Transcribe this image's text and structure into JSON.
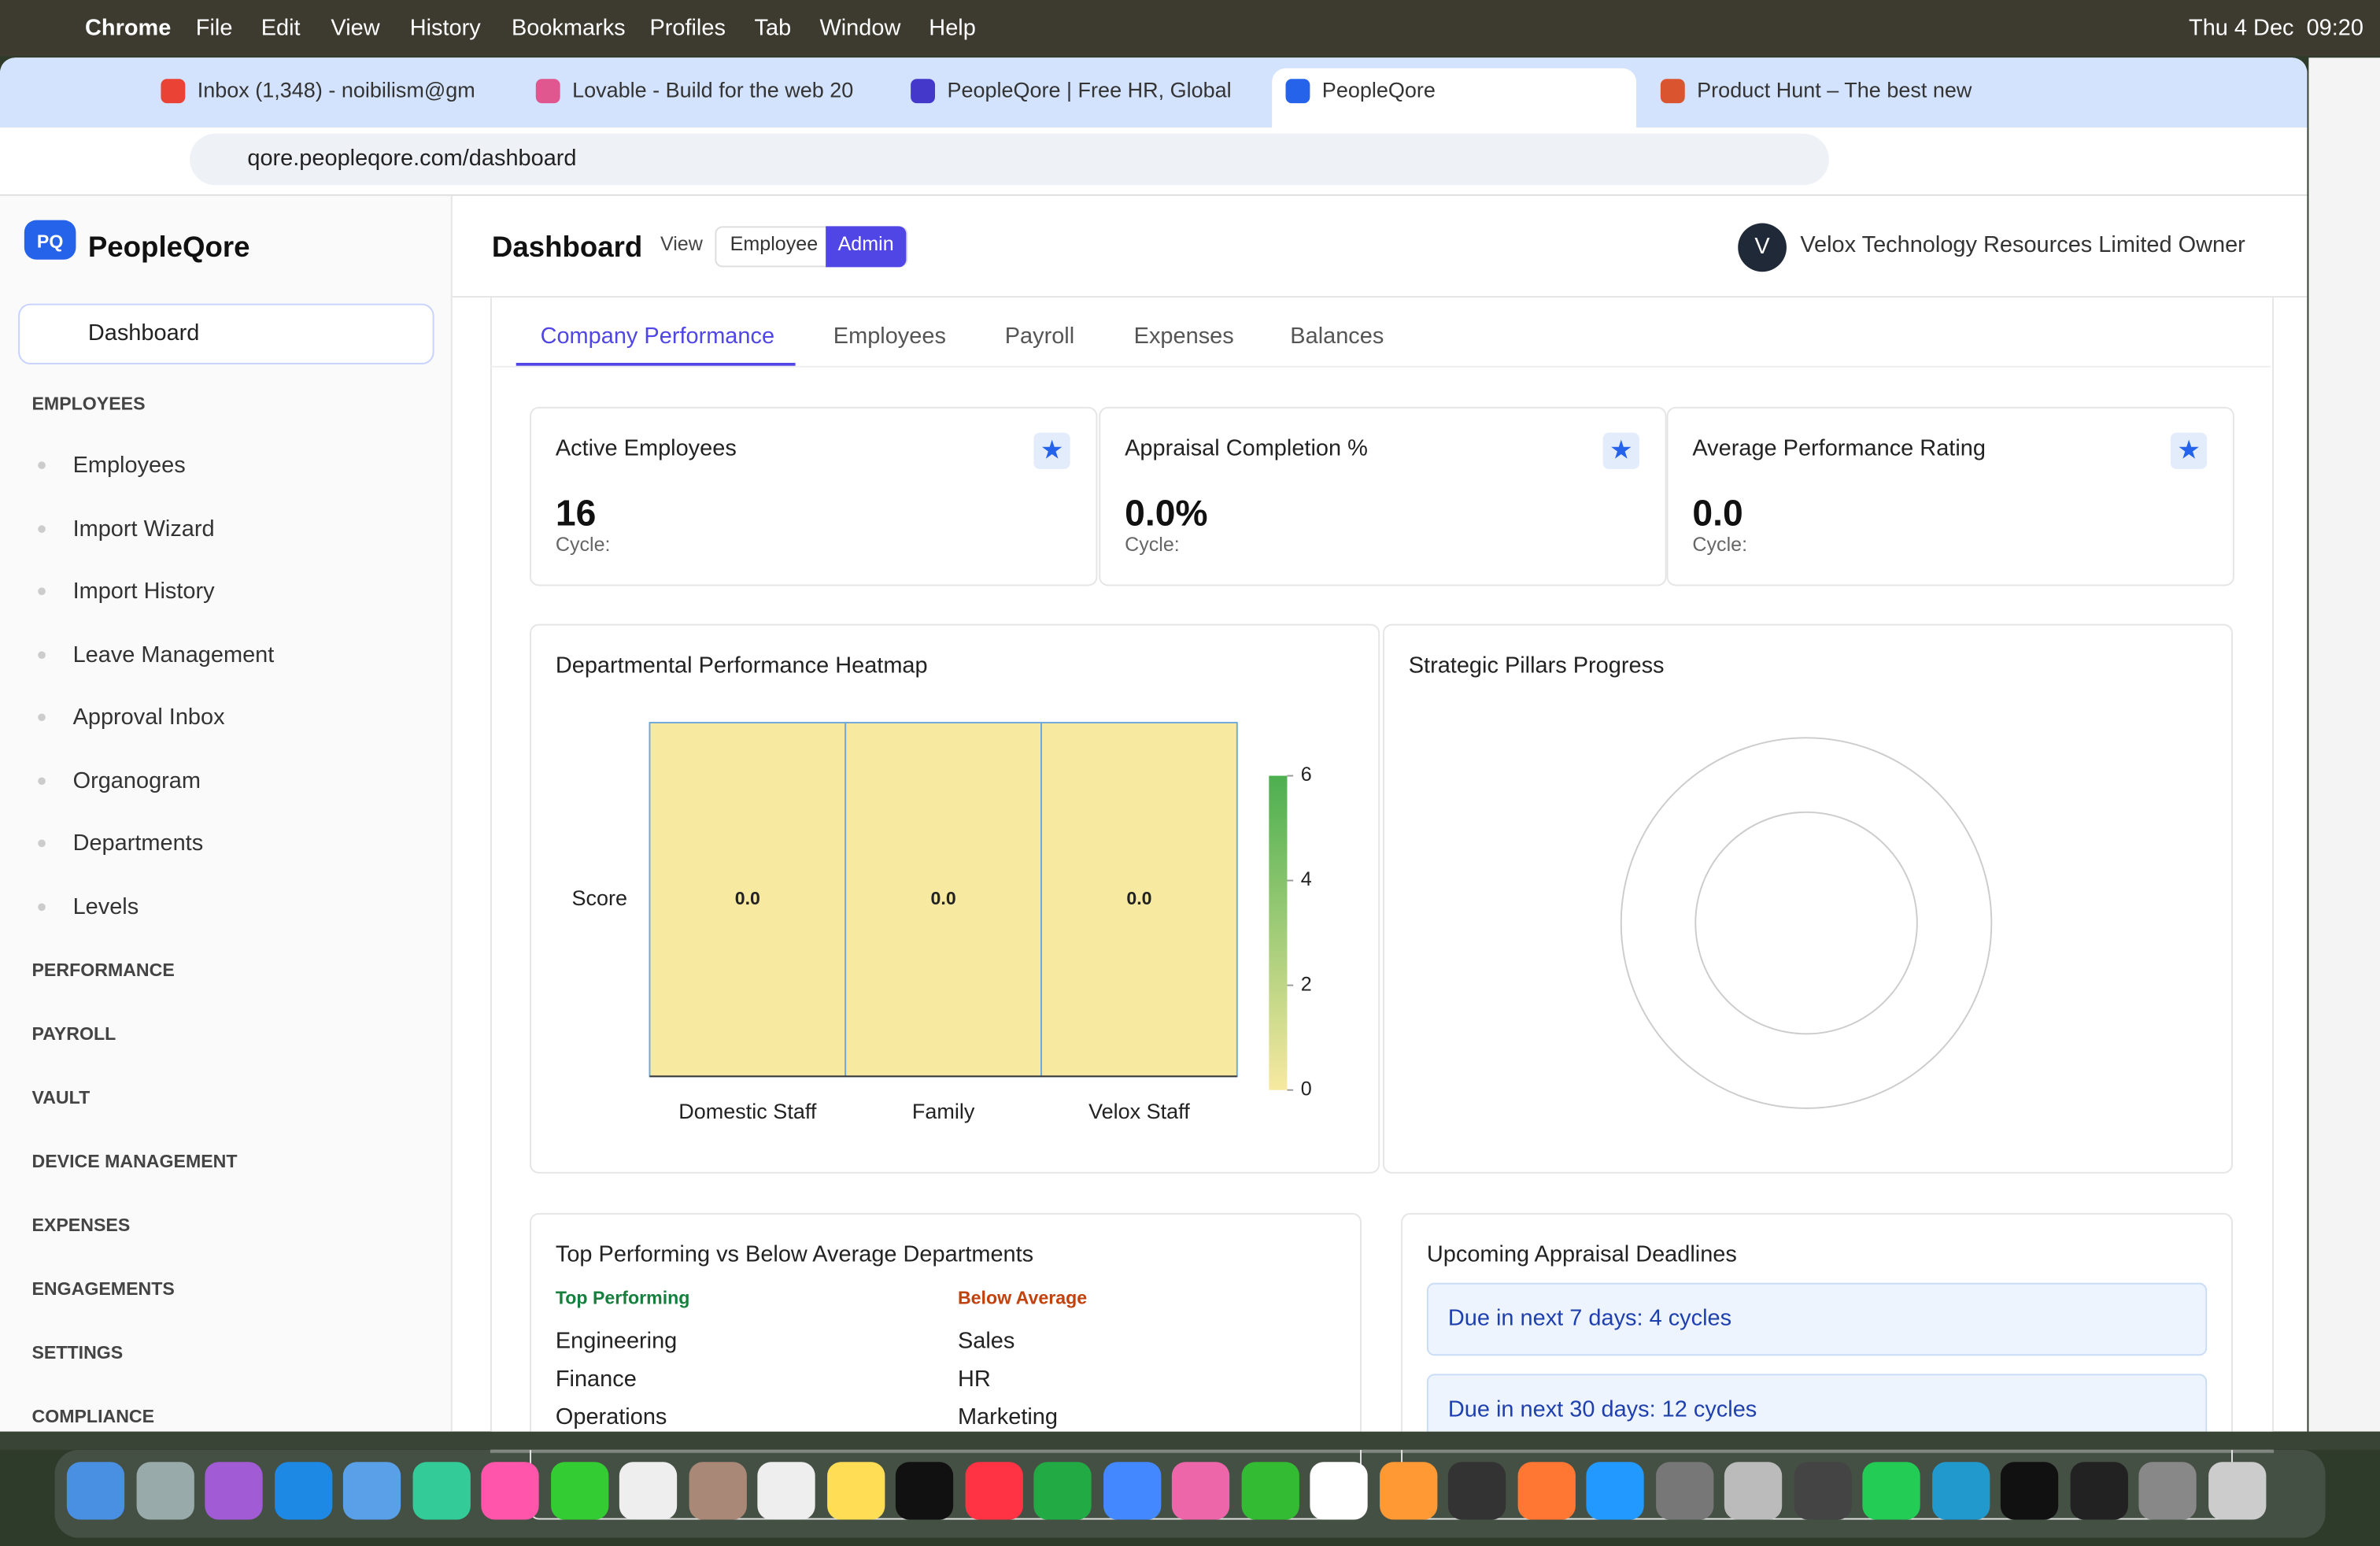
{
  "menubar": {
    "app": "Chrome",
    "menus": [
      "File",
      "Edit",
      "View",
      "History",
      "Bookmarks",
      "Profiles",
      "Tab",
      "Window",
      "Help"
    ],
    "clock": "Thu 4 Dec  09:20"
  },
  "tabs": [
    "Inbox (1,348) - noibilism@gm",
    "Lovable - Build for the web 20",
    "PeopleQore | Free HR, Global",
    "PeopleQore",
    "Product Hunt – The best new"
  ],
  "address": "qore.peopleqore.com/dashboard",
  "sidebar": {
    "logo": "PQ",
    "brand": "PeopleQore",
    "active": "Dashboard",
    "open_section": "EMPLOYEES",
    "items": [
      "Employees",
      "Import Wizard",
      "Import History",
      "Leave Management",
      "Approval Inbox",
      "Organogram",
      "Departments",
      "Levels"
    ],
    "sections": [
      "PERFORMANCE",
      "PAYROLL",
      "VAULT",
      "DEVICE MANAGEMENT",
      "EXPENSES",
      "ENGAGEMENTS",
      "SETTINGS",
      "COMPLIANCE"
    ]
  },
  "header": {
    "title": "Dashboard",
    "view_label": "View",
    "views": [
      "Employee",
      "Admin"
    ],
    "avatar": "V",
    "org": "Velox Technology Resources Limited Owner"
  },
  "subtabs": [
    "Company Performance",
    "Employees",
    "Payroll",
    "Expenses",
    "Balances"
  ],
  "kpis": [
    {
      "label": "Active Employees",
      "value": "16",
      "sub": "Cycle:"
    },
    {
      "label": "Appraisal Completion %",
      "value": "0.0%",
      "sub": "Cycle:"
    },
    {
      "label": "Average Performance Rating",
      "value": "0.0",
      "sub": "Cycle:"
    }
  ],
  "chart_data": {
    "type": "heatmap",
    "title": "Departmental Performance Heatmap",
    "categories": [
      "Domestic Staff",
      "Family",
      "Velox Staff"
    ],
    "rows": [
      "Score"
    ],
    "values": [
      [
        0,
        0,
        0
      ]
    ],
    "value_labels": [
      [
        "0.0",
        "0.0",
        "0.0"
      ]
    ],
    "clim": [
      0,
      6
    ],
    "cticks": [
      0,
      2,
      4,
      6
    ],
    "colors": [
      "#f7e9a0",
      "#4caf50"
    ]
  },
  "pillars": {
    "title": "Strategic Pillars Progress"
  },
  "departments": {
    "title": "Top Performing vs Below Average Departments",
    "top_label": "Top Performing",
    "top": [
      "Engineering",
      "Finance",
      "Operations"
    ],
    "below_label": "Below Average",
    "below": [
      "Sales",
      "HR",
      "Marketing"
    ]
  },
  "deadlines": {
    "title": "Upcoming Appraisal Deadlines",
    "items": [
      "Due in next 7 days: 4 cycles",
      "Due in next 30 days: 12 cycles"
    ]
  }
}
